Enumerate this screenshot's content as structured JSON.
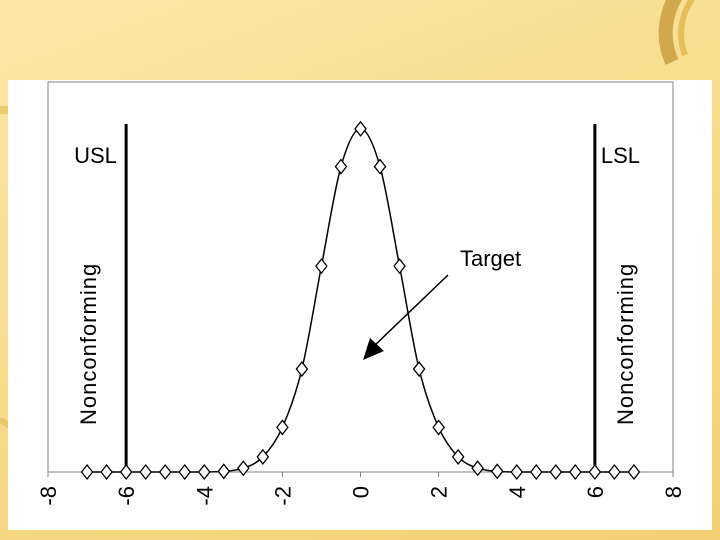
{
  "chart_data": {
    "type": "scatter",
    "x": [
      -7,
      -6.5,
      -6,
      -5.5,
      -5,
      -4.5,
      -4,
      -3.5,
      -3,
      -2.5,
      -2,
      -1.5,
      -1,
      -0.5,
      0,
      0.5,
      1,
      1.5,
      2,
      2.5,
      3,
      3.5,
      4,
      4.5,
      5,
      5.5,
      6,
      6.5,
      7
    ],
    "y": [
      0,
      0,
      0,
      0,
      0,
      0,
      0,
      0.002,
      0.011,
      0.044,
      0.13,
      0.3,
      0.6,
      0.89,
      1.0,
      0.89,
      0.6,
      0.3,
      0.13,
      0.044,
      0.011,
      0.002,
      0,
      0,
      0,
      0,
      0,
      0,
      0
    ],
    "xlim": [
      -8,
      8
    ],
    "ylim": [
      0,
      1.02
    ],
    "x_ticks": [
      "-8",
      "-6",
      "-4",
      "-2",
      "0",
      "2",
      "4",
      "6",
      "8"
    ],
    "marker": "diamond",
    "line": "smooth",
    "limit_lines": [
      {
        "x": -6,
        "label": "USL"
      },
      {
        "x": 6,
        "label": "LSL"
      }
    ],
    "annotations": {
      "left_region": "Nonconforming",
      "right_region": "Nonconforming",
      "target": "Target"
    },
    "grid": false
  }
}
